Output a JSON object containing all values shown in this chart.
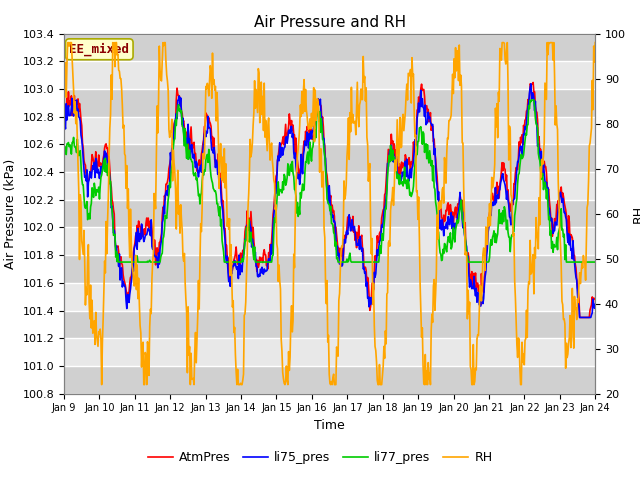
{
  "title": "Air Pressure and RH",
  "xlabel": "Time",
  "ylabel_left": "Air Pressure (kPa)",
  "ylabel_right": "RH",
  "ylim_left": [
    100.8,
    103.4
  ],
  "ylim_right": [
    20,
    100
  ],
  "yticks_left": [
    100.8,
    101.0,
    101.2,
    101.4,
    101.6,
    101.8,
    102.0,
    102.2,
    102.4,
    102.6,
    102.8,
    103.0,
    103.2,
    103.4
  ],
  "yticks_right": [
    20,
    30,
    40,
    50,
    60,
    70,
    80,
    90,
    100
  ],
  "xtick_labels": [
    "Jan 9",
    "Jan 10",
    "Jan 11",
    "Jan 12",
    "Jan 13",
    "Jan 14",
    "Jan 15",
    "Jan 16",
    "Jan 17",
    "Jan 18",
    "Jan 19",
    "Jan 20",
    "Jan 21",
    "Jan 22",
    "Jan 23",
    "Jan 24"
  ],
  "annotation_text": "EE_mixed",
  "annotation_color": "#8B0000",
  "annotation_bg": "#FFFFCC",
  "annotation_border": "#AAAA00",
  "colors": {
    "AtmPres": "#FF0000",
    "li75_pres": "#0000FF",
    "li77_pres": "#00CC00",
    "RH": "#FFA500"
  },
  "linewidths": {
    "AtmPres": 1.2,
    "li75_pres": 1.2,
    "li77_pres": 1.2,
    "RH": 1.2
  },
  "bg_color": "#D8D8D8",
  "stripe_color1": "#D0D0D0",
  "stripe_color2": "#E8E8E8",
  "title_fontsize": 11,
  "axis_label_fontsize": 9,
  "tick_fontsize": 8
}
